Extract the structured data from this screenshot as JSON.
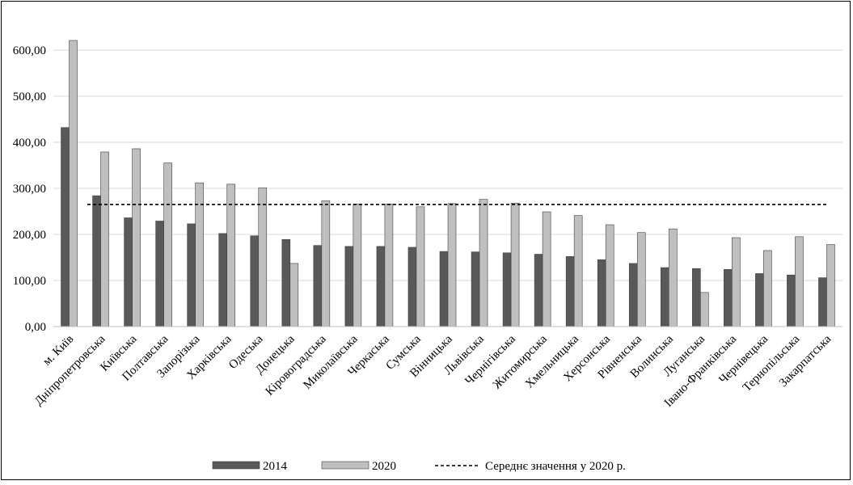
{
  "chart_data": {
    "type": "bar",
    "categories": [
      "м. Київ",
      "Дніпропетровська",
      "Київська",
      "Полтавська",
      "Запорізька",
      "Харківська",
      "Одеська",
      "Донецька",
      "Кіровоградська",
      "Миколаївська",
      "Черкаська",
      "Сумська",
      "Вінницька",
      "Львівська",
      "Чернігівська",
      "Житомирська",
      "Хмельницька",
      "Херсонська",
      "Рівненська",
      "Волинська",
      "Луганська",
      "Івано-Франківська",
      "Чернівецька",
      "Тернопільська",
      "Закарпатська"
    ],
    "series": [
      {
        "name": "2014",
        "color": "#595959",
        "values": [
          432,
          284,
          236,
          229,
          223,
          202,
          197,
          189,
          176,
          174,
          174,
          172,
          163,
          162,
          160,
          157,
          152,
          145,
          137,
          128,
          126,
          124,
          115,
          112,
          106
        ]
      },
      {
        "name": "2020",
        "color": "#bfbfbf",
        "values": [
          621,
          379,
          386,
          355,
          312,
          309,
          301,
          137,
          273,
          266,
          266,
          260,
          267,
          276,
          268,
          249,
          241,
          221,
          204,
          212,
          74,
          193,
          165,
          195,
          178
        ]
      }
    ],
    "reference_line": {
      "name": "Середнє значення у 2020 р.",
      "value": 265,
      "style": "dashed"
    },
    "yticks": [
      "0,00",
      "100,00",
      "200,00",
      "300,00",
      "400,00",
      "500,00",
      "600,00"
    ],
    "ylim": [
      0,
      650
    ],
    "grid": true,
    "legend_position": "bottom"
  }
}
